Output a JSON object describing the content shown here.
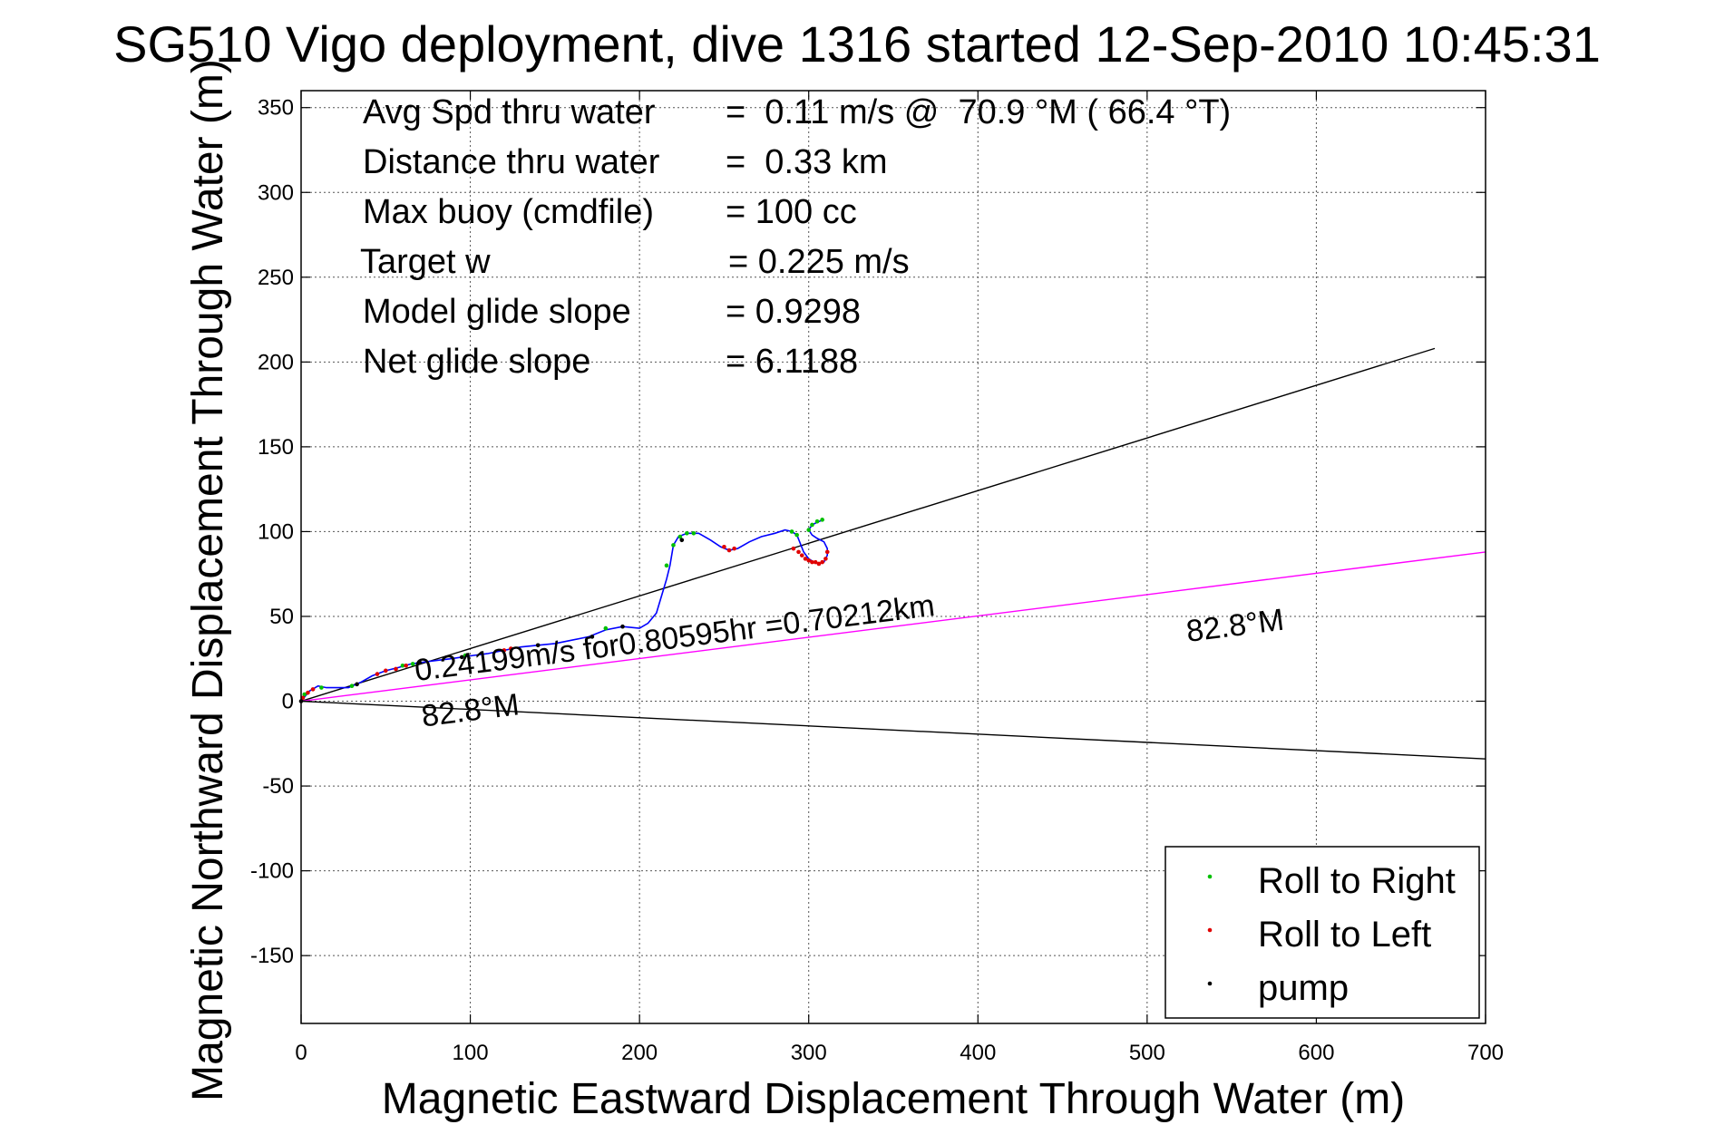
{
  "chart_data": {
    "type": "line",
    "title": "SG510 Vigo deployment, dive 1316 started 12-Sep-2010 10:45:31",
    "xlabel": "Magnetic Eastward Displacement Through Water (m)",
    "ylabel": "Magnetic Northward Displacement Through Water (m)",
    "xlim": [
      0,
      700
    ],
    "ylim": [
      -190,
      360
    ],
    "x_ticks": [
      0,
      100,
      200,
      300,
      400,
      500,
      600,
      700
    ],
    "y_ticks": [
      -150,
      -100,
      -50,
      0,
      50,
      100,
      150,
      200,
      250,
      300,
      350
    ],
    "x_tick_labels": [
      "0",
      "100",
      "200",
      "300",
      "400",
      "500",
      "600",
      "700"
    ],
    "y_tick_labels": [
      "-150",
      "-100",
      "-50",
      "0",
      "50",
      "100",
      "150",
      "200",
      "250",
      "300",
      "350"
    ],
    "grid": true,
    "legend_position": "bottom-right",
    "stats": [
      {
        "label": "Avg Spd thru water",
        "value": "=  0.11 m/s @  70.9 °M ( 66.4 °T)"
      },
      {
        "label": "Distance thru water",
        "value": "=  0.33 km"
      },
      {
        "label": "Max buoy (cmdfile)",
        "value": "= 100 cc"
      },
      {
        "label": "Target w",
        "value": "= 0.225 m/s"
      },
      {
        "label": "Model glide slope",
        "value": "= 0.9298"
      },
      {
        "label": "Net glide slope",
        "value": "= 6.1188"
      }
    ],
    "annotations": [
      {
        "text": "0.24199m/s for0.80595hr =0.70212km",
        "x": 68,
        "y": 12,
        "angle_deg": 7.2
      },
      {
        "text": "82.8°M",
        "x": 72,
        "y": -15,
        "angle_deg": 7.2
      },
      {
        "text": "82.8°M",
        "x": 524,
        "y": 35,
        "angle_deg": 7.2
      }
    ],
    "reference_lines": [
      {
        "from": [
          0,
          0
        ],
        "to": [
          670,
          208
        ],
        "color": "#000000"
      },
      {
        "from": [
          0,
          0
        ],
        "to": [
          700,
          88
        ],
        "color": "#ff00ff"
      },
      {
        "from": [
          0,
          0
        ],
        "to": [
          700,
          -34
        ],
        "color": "#000000"
      }
    ],
    "series": [
      {
        "color": "#0000ff",
        "x": [
          0,
          5,
          10,
          15,
          20,
          28,
          35,
          42,
          50,
          58,
          65,
          72,
          80,
          88,
          95,
          102,
          110,
          120,
          130,
          140,
          150,
          160,
          170,
          180,
          190,
          200,
          205,
          210,
          213,
          216,
          218,
          220,
          223,
          228,
          235,
          242,
          248,
          253,
          258,
          265,
          272,
          280,
          286,
          290,
          293,
          295,
          297,
          300,
          303,
          306,
          309,
          311,
          311,
          309,
          305,
          302,
          300,
          302,
          306,
          309
        ],
        "y": [
          0,
          6,
          9,
          8,
          8,
          8,
          11,
          15,
          18,
          20,
          22,
          23,
          24,
          25,
          26,
          27,
          28,
          30,
          32,
          33,
          34,
          36,
          38,
          42,
          44,
          43,
          46,
          52,
          62,
          72,
          80,
          92,
          97,
          99,
          99,
          95,
          91,
          89,
          90,
          94,
          97,
          99,
          101,
          100,
          98,
          93,
          88,
          84,
          82,
          81,
          82,
          86,
          90,
          94,
          96,
          98,
          101,
          104,
          106,
          107
        ]
      }
    ],
    "markers": [
      {
        "name": "Roll to Right",
        "color": "#00c000",
        "x": [
          2,
          12,
          30,
          60,
          66,
          97,
          180,
          216,
          220,
          224,
          228,
          232,
          290,
          293,
          300,
          302,
          305,
          308
        ],
        "y": [
          4,
          8,
          9,
          21,
          22,
          27,
          43,
          80,
          92,
          97,
          99,
          99,
          100,
          98,
          101,
          104,
          106,
          107
        ]
      },
      {
        "name": "Roll to Left",
        "color": "#e00000",
        "x": [
          1,
          4,
          7,
          45,
          50,
          56,
          62,
          120,
          124,
          250,
          253,
          256,
          291,
          294,
          296,
          298,
          300,
          302,
          304,
          306,
          308,
          310,
          311
        ],
        "y": [
          2,
          5,
          7,
          16,
          18,
          19,
          21,
          30,
          31,
          91,
          89,
          90,
          90,
          88,
          86,
          84,
          83,
          82,
          82,
          81,
          82,
          84,
          88
        ]
      },
      {
        "name": "pump",
        "color": "#000000",
        "x": [
          0,
          33,
          70,
          95,
          140,
          172,
          190,
          225
        ],
        "y": [
          0,
          10,
          23,
          26,
          33,
          38,
          44,
          95
        ]
      }
    ]
  }
}
